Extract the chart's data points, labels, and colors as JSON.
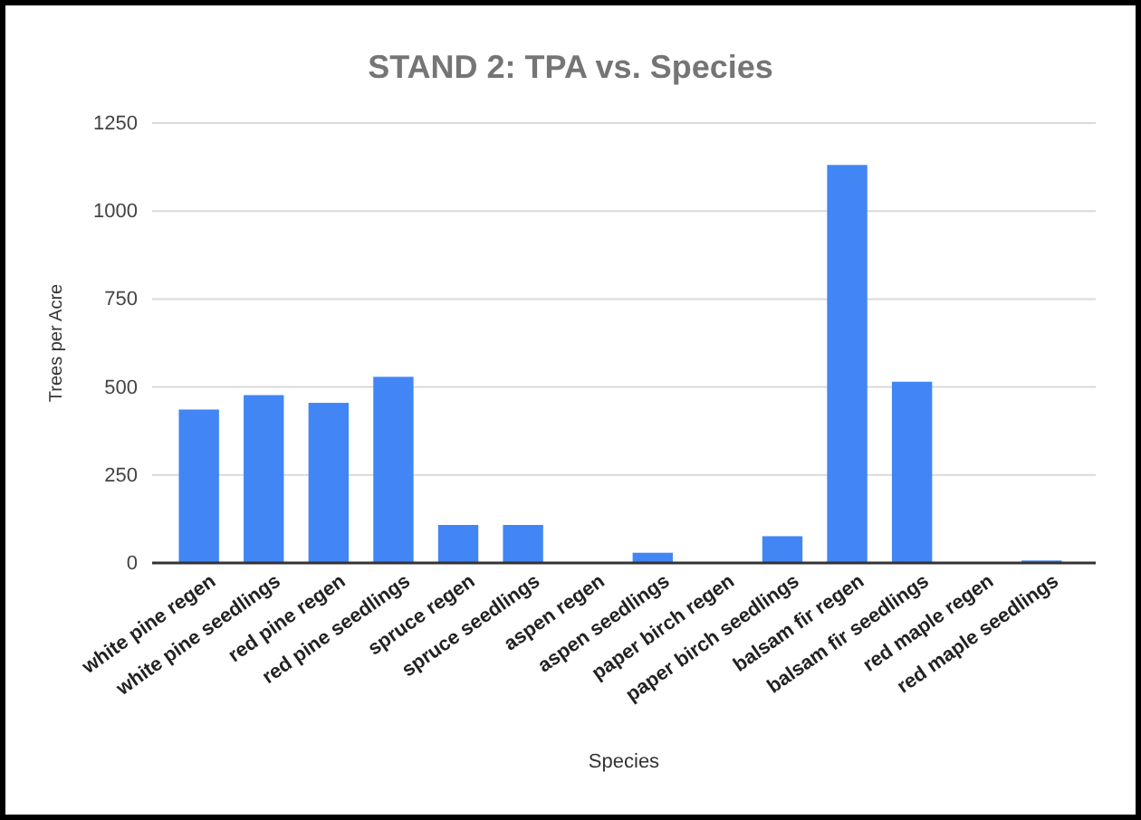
{
  "chart_data": {
    "type": "bar",
    "title": "STAND 2: TPA vs. Species",
    "xlabel": "Species",
    "ylabel": "Trees per Acre",
    "categories": [
      "white pine regen",
      "white pine seedlings",
      "red pine regen",
      "red pine seedlings",
      "spruce regen",
      "spruce seedlings",
      "aspen regen",
      "aspen seedlings",
      "paper birch regen",
      "paper birch seedlings",
      "balsam fir regen",
      "balsam fir seedlings",
      "red maple regen",
      "red maple seedlings"
    ],
    "values": [
      436,
      477,
      455,
      529,
      108,
      108,
      0,
      29,
      0,
      76,
      1131,
      515,
      0,
      7
    ],
    "color": "#4285f4",
    "ylim": [
      0,
      1250
    ],
    "yticks": [
      0,
      250,
      500,
      750,
      1000,
      1250
    ],
    "grid": "y"
  }
}
